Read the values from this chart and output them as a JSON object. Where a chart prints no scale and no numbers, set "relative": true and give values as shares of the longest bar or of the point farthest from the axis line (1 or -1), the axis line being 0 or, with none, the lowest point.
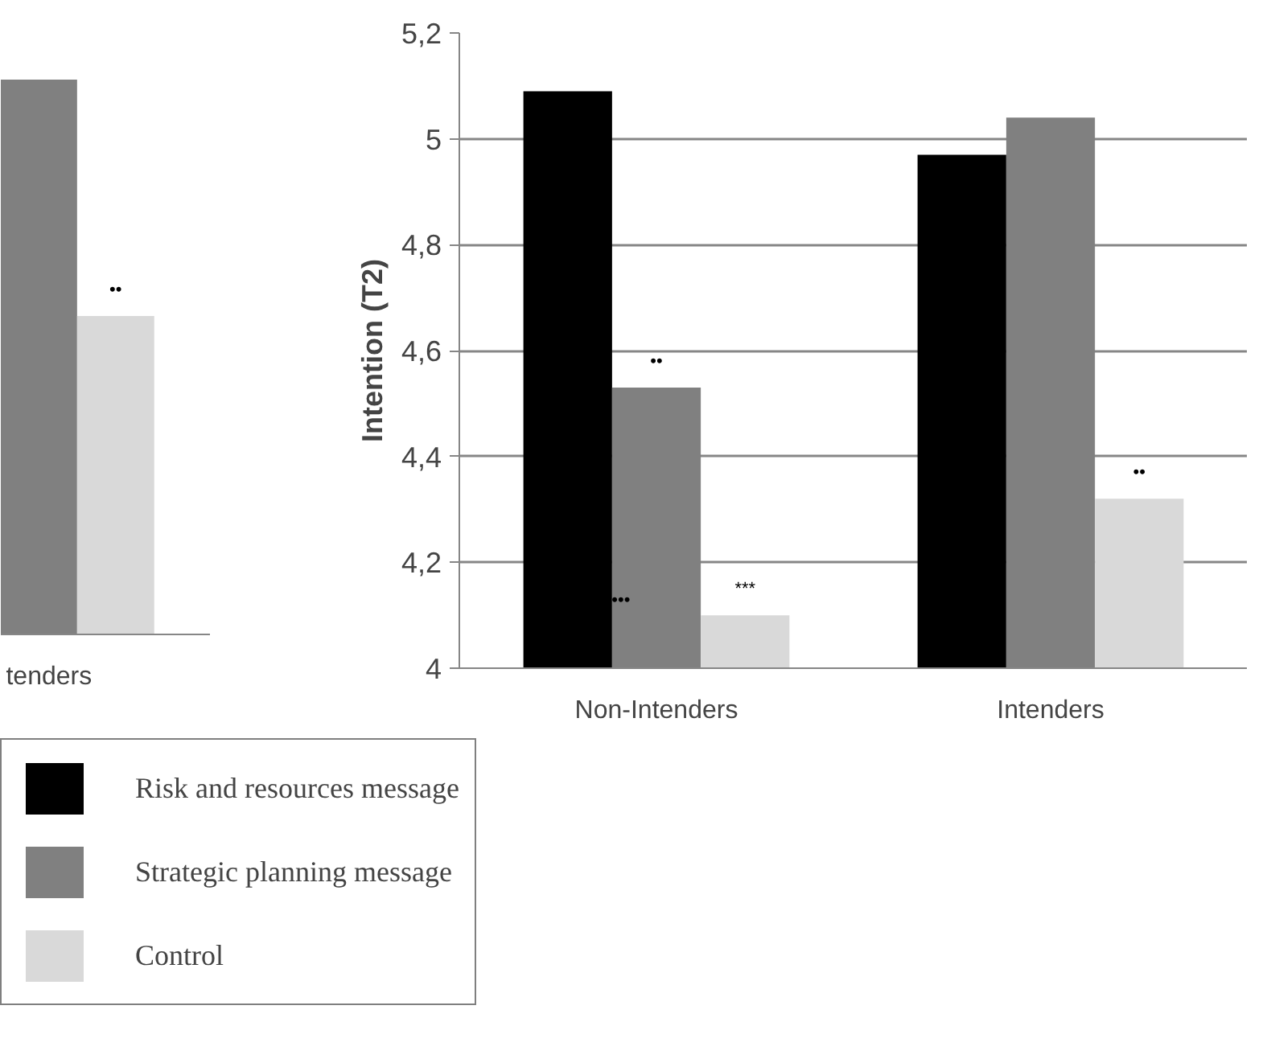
{
  "chart_data": [
    {
      "type": "bar",
      "relative": true,
      "categories": [
        "tenders"
      ],
      "series": [
        {
          "color": "#000000",
          "values": [
            null
          ]
        },
        {
          "color": "#808080",
          "values": [
            1
          ]
        },
        {
          "color": "#d9d9d9",
          "values": [
            0.574
          ]
        }
      ],
      "annotations": [
        "••"
      ]
    },
    {
      "type": "bar",
      "ylabel": "Intention (T2)",
      "categories": [
        "Non-Intenders",
        "Intenders"
      ],
      "series": [
        {
          "name": "Risk and resources message",
          "color": "#000000",
          "values": [
            5.09,
            4.97
          ]
        },
        {
          "name": "Strategic planning message",
          "color": "#808080",
          "values": [
            4.53,
            5.04
          ]
        },
        {
          "name": "Control",
          "color": "#d9d9d9",
          "values": [
            4.1,
            4.32
          ]
        }
      ],
      "ylim": [
        4,
        5.2
      ],
      "yticks": [
        4,
        {
          "value": 4.2,
          "label": "4,2"
        },
        {
          "value": 4.4,
          "label": "4,4"
        },
        {
          "value": 4.6,
          "label": "4,6"
        },
        {
          "value": 4.8,
          "label": "4,8"
        },
        5,
        {
          "value": 5.2,
          "label": "5,2"
        }
      ],
      "grid": "y",
      "legend": "bottom left",
      "annotations": [
        "••",
        "***",
        "•••",
        "••"
      ]
    }
  ]
}
